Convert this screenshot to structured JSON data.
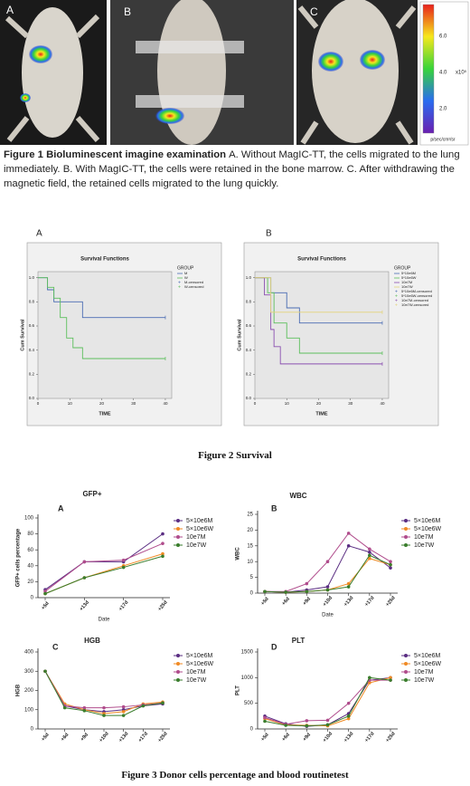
{
  "figure1": {
    "panels": [
      "A",
      "B",
      "C"
    ],
    "scale_ticks": [
      "6.0",
      "4.0",
      "2.0"
    ],
    "scale_unit": "x10⁵",
    "scale_caption": "p/sec/cm²/sr",
    "caption_bold": "Figure 1 Bioluminescent imagine examination",
    "caption_text": "A. Without MagIC-TT, the cells migrated to the lung immediately. B. With MagIC-TT,   the cells were retained in the bone marrow. C. After withdrawing the magnetic field, the retained cells migrated to the lung quickly."
  },
  "figure2": {
    "caption": "Figure 2 Survival"
  },
  "figure3": {
    "caption": "Figure 3 Donor cells percentage and blood routinetest"
  },
  "chart_data": [
    {
      "type": "step",
      "panel": "A",
      "title": "Survival Functions",
      "x_label": "TIME",
      "y_label": "Cum Survival",
      "legend_title": "GROUP",
      "censored_labels": [
        "M-censored",
        "W-censored"
      ],
      "xlim": [
        0,
        42
      ],
      "ylim": [
        0,
        1.05
      ],
      "xticks": [
        0,
        10,
        20,
        30,
        40
      ],
      "yticks": [
        {
          "value": 0,
          "label": "0.0"
        },
        {
          "value": 0.2,
          "label": "0.2"
        },
        {
          "value": 0.4,
          "label": "0.4"
        },
        {
          "value": 0.6,
          "label": "0.6"
        },
        {
          "value": 0.8,
          "label": "0.8"
        },
        {
          "value": 1,
          "label": "1.0"
        }
      ],
      "series": [
        {
          "name": "M",
          "color": "#4a6cb3",
          "x": [
            0,
            3,
            5,
            14,
            40
          ],
          "values": [
            1.0,
            0.9,
            0.8,
            0.67,
            0.67
          ]
        },
        {
          "name": "W",
          "color": "#5cbf5c",
          "x": [
            0,
            3,
            5,
            7,
            9,
            11,
            14,
            40
          ],
          "values": [
            1.0,
            0.92,
            0.83,
            0.67,
            0.5,
            0.42,
            0.33,
            0.33
          ]
        }
      ]
    },
    {
      "type": "step",
      "panel": "B",
      "title": "Survival Functions",
      "x_label": "TIME",
      "y_label": "Cum Survival",
      "legend_title": "GROUP",
      "censored_labels": [
        "5*10e6M-censored",
        "5*10e6W-censored",
        "10e7M-censored",
        "10e7W-censored"
      ],
      "xlim": [
        0,
        42
      ],
      "ylim": [
        0,
        1.05
      ],
      "xticks": [
        0,
        10,
        20,
        30,
        40
      ],
      "yticks": [
        {
          "value": 0,
          "label": "0.0"
        },
        {
          "value": 0.2,
          "label": "0.2"
        },
        {
          "value": 0.4,
          "label": "0.4"
        },
        {
          "value": 0.6,
          "label": "0.6"
        },
        {
          "value": 0.8,
          "label": "0.8"
        },
        {
          "value": 1,
          "label": "1.0"
        }
      ],
      "series": [
        {
          "name": "5*10e6M",
          "color": "#4a6cb3",
          "x": [
            0,
            5,
            10,
            14,
            40
          ],
          "values": [
            1.0,
            0.875,
            0.75,
            0.625,
            0.625
          ]
        },
        {
          "name": "5*10e6W",
          "color": "#5cbf5c",
          "x": [
            0,
            4,
            6,
            10,
            14,
            40
          ],
          "values": [
            1.0,
            0.875,
            0.625,
            0.5,
            0.375,
            0.375
          ]
        },
        {
          "name": "10e7M",
          "color": "#8a4fb0",
          "x": [
            0,
            3,
            5,
            6,
            8,
            40
          ],
          "values": [
            1.0,
            0.857,
            0.571,
            0.429,
            0.286,
            0.286
          ]
        },
        {
          "name": "10e7W",
          "color": "#e3d47a",
          "x": [
            0,
            5,
            40
          ],
          "values": [
            1.0,
            0.714,
            0.714
          ]
        }
      ]
    },
    {
      "type": "line",
      "panel": "A",
      "title": "GFP+",
      "x_label": "Date",
      "y_label": "GFP+ cells percentage",
      "categories": [
        "+5d",
        "+13d",
        "+17d",
        "+25d"
      ],
      "ylim": [
        0,
        100
      ],
      "yticks": [
        0,
        20,
        40,
        60,
        80,
        100
      ],
      "series": [
        {
          "name": "5×10e6M",
          "color": "#5a2d82",
          "values": [
            10,
            45,
            45,
            80
          ]
        },
        {
          "name": "5×10e6W",
          "color": "#f08a24",
          "values": [
            5,
            25,
            40,
            55
          ]
        },
        {
          "name": "10e7M",
          "color": "#b04c8c",
          "values": [
            8,
            45,
            47,
            68
          ]
        },
        {
          "name": "10e7W",
          "color": "#3a7d2c",
          "values": [
            5,
            25,
            38,
            52
          ]
        }
      ]
    },
    {
      "type": "line",
      "panel": "B",
      "title": "WBC",
      "x_label": "Date",
      "y_label": "WBC",
      "categories": [
        "+5d",
        "+6d",
        "+9d",
        "+10d",
        "+13d",
        "+17d",
        "+25d"
      ],
      "ylim": [
        0,
        25
      ],
      "yticks": [
        0,
        5,
        10,
        15,
        20,
        25
      ],
      "series": [
        {
          "name": "5×10e6M",
          "color": "#5a2d82",
          "values": [
            0.5,
            0.3,
            1,
            2,
            15,
            13,
            8
          ]
        },
        {
          "name": "5×10e6W",
          "color": "#f08a24",
          "values": [
            0.5,
            0.3,
            0.5,
            1,
            3,
            11,
            9
          ]
        },
        {
          "name": "10e7M",
          "color": "#b04c8c",
          "values": [
            0.5,
            0.5,
            3,
            10,
            19,
            14,
            10
          ]
        },
        {
          "name": "10e7W",
          "color": "#3a7d2c",
          "values": [
            0.5,
            0.3,
            0.5,
            1,
            2,
            12,
            9
          ]
        }
      ]
    },
    {
      "type": "line",
      "panel": "C",
      "title": "HGB",
      "y_label": "HGB",
      "categories": [
        "+5d",
        "+6d",
        "+9d",
        "+10d",
        "+13d",
        "+17d",
        "+25d"
      ],
      "ylim": [
        0,
        400
      ],
      "yticks": [
        0,
        100,
        200,
        300,
        400
      ],
      "series": [
        {
          "name": "5×10e6M",
          "color": "#5a2d82",
          "values": [
            300,
            120,
            100,
            90,
            100,
            120,
            130
          ]
        },
        {
          "name": "5×10e6W",
          "color": "#f08a24",
          "values": [
            300,
            130,
            100,
            80,
            90,
            130,
            140
          ]
        },
        {
          "name": "10e7M",
          "color": "#b04c8c",
          "values": [
            300,
            120,
            110,
            110,
            115,
            125,
            135
          ]
        },
        {
          "name": "10e7W",
          "color": "#3a7d2c",
          "values": [
            300,
            110,
            95,
            70,
            70,
            120,
            135
          ]
        }
      ]
    },
    {
      "type": "line",
      "panel": "D",
      "title": "PLT",
      "y_label": "PLT",
      "categories": [
        "+5d",
        "+6d",
        "+9d",
        "+10d",
        "+13d",
        "+17d",
        "+25d"
      ],
      "ylim": [
        0,
        1500
      ],
      "yticks": [
        0,
        500,
        1000,
        1500
      ],
      "series": [
        {
          "name": "5×10e6M",
          "color": "#5a2d82",
          "values": [
            250,
            100,
            50,
            80,
            300,
            950,
            1000
          ]
        },
        {
          "name": "5×10e6W",
          "color": "#f08a24",
          "values": [
            200,
            80,
            70,
            60,
            200,
            900,
            1000
          ]
        },
        {
          "name": "10e7M",
          "color": "#b04c8c",
          "values": [
            220,
            90,
            160,
            170,
            500,
            950,
            950
          ]
        },
        {
          "name": "10e7W",
          "color": "#3a7d2c",
          "values": [
            150,
            70,
            60,
            80,
            250,
            1000,
            950
          ]
        }
      ]
    }
  ]
}
